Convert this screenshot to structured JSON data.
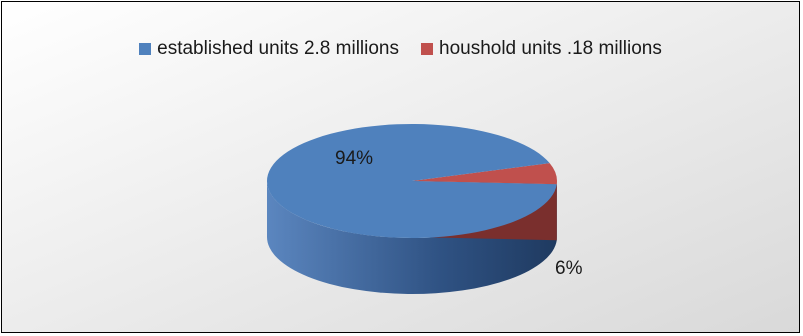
{
  "chart_data": {
    "type": "pie",
    "categories": [
      "established units 2.8 millions",
      "houshold units .18 millions"
    ],
    "values": [
      94,
      6
    ],
    "data_labels": [
      "94%",
      "6%"
    ],
    "colors": [
      "#4F81BD",
      "#C0504D"
    ],
    "legend_position": "top",
    "style": "3d-pie"
  }
}
